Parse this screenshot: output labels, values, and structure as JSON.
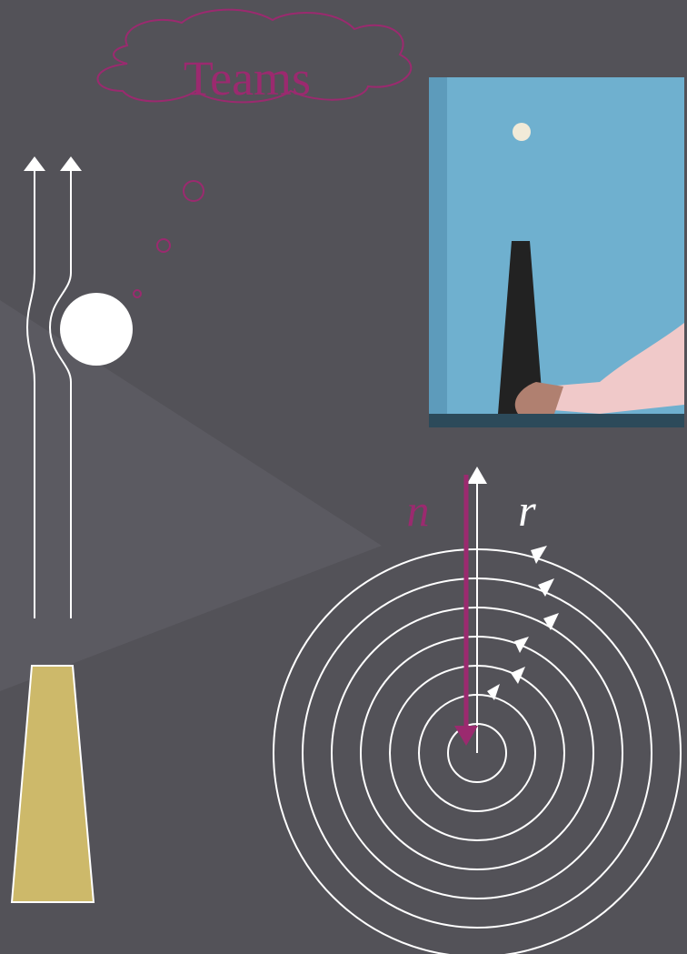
{
  "thought_bubble": {
    "label": "Teams"
  },
  "axis_labels": {
    "n": "n",
    "r": "r"
  }
}
